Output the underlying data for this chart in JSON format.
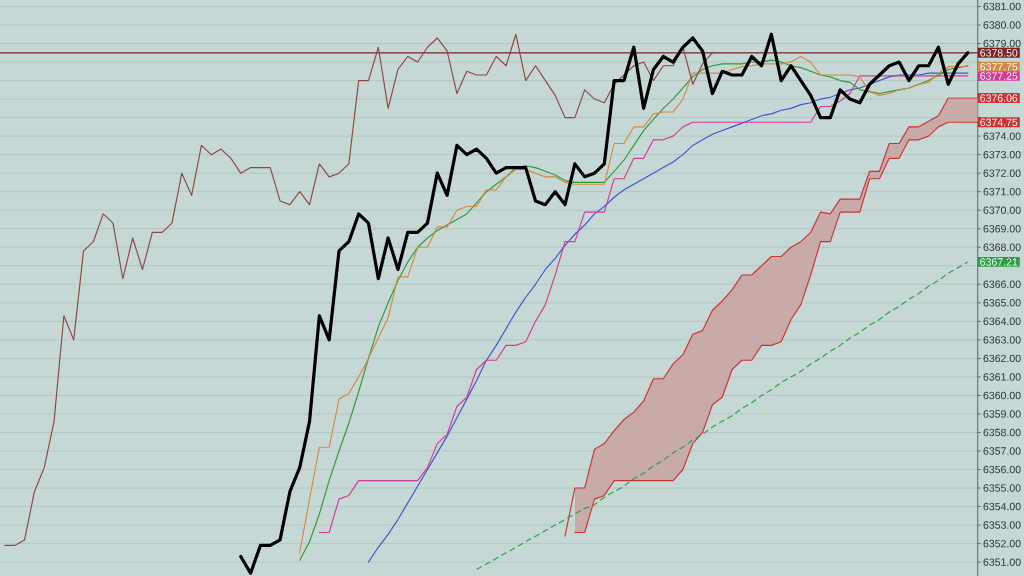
{
  "chart_data": {
    "type": "line",
    "categories": [
      null,
      null,
      null,
      null,
      null,
      null,
      null,
      null,
      null,
      null,
      null,
      null,
      null,
      null,
      null,
      null,
      null,
      null,
      null,
      null,
      null,
      null,
      null,
      null,
      null,
      null,
      null,
      null,
      null,
      null,
      null,
      null,
      null,
      null,
      null,
      null,
      null,
      null,
      null,
      null,
      null,
      null,
      null,
      null,
      null,
      null,
      null,
      null,
      null,
      null,
      null,
      null,
      null,
      null,
      null,
      null,
      null,
      null,
      null,
      null,
      null,
      null,
      null,
      null,
      null,
      null,
      null,
      null,
      null,
      null,
      null,
      null,
      null,
      null,
      null,
      null,
      null,
      null,
      null,
      null,
      null,
      null,
      null,
      null,
      null,
      null,
      null,
      null,
      null,
      null,
      null,
      null,
      null,
      null,
      null,
      null,
      null,
      null,
      null,
      null
    ],
    "ylim": [
      6350.25,
      6381.35
    ],
    "yticks": [
      {
        "value": 6351,
        "label": "6351.00"
      },
      {
        "value": 6352,
        "label": "6352.00"
      },
      {
        "value": 6353,
        "label": "6353.00"
      },
      {
        "value": 6354,
        "label": "6354.00"
      },
      {
        "value": 6355,
        "label": "6355.00"
      },
      {
        "value": 6356,
        "label": "6356.00"
      },
      {
        "value": 6357,
        "label": "6357.00"
      },
      {
        "value": 6358,
        "label": "6358.00"
      },
      {
        "value": 6359,
        "label": "6359.00"
      },
      {
        "value": 6360,
        "label": "6360.00"
      },
      {
        "value": 6361,
        "label": "6361.00"
      },
      {
        "value": 6362,
        "label": "6362.00"
      },
      {
        "value": 6363,
        "label": "6363.00"
      },
      {
        "value": 6364,
        "label": "6364.00"
      },
      {
        "value": 6365,
        "label": "6365.00"
      },
      {
        "value": 6366,
        "label": "6366.00"
      },
      {
        "value": 6367,
        "label": null
      },
      {
        "value": 6368,
        "label": "6368.00"
      },
      {
        "value": 6369,
        "label": "6369.00"
      },
      {
        "value": 6370,
        "label": "6370.00"
      },
      {
        "value": 6371,
        "label": "6371.00"
      },
      {
        "value": 6372,
        "label": "6372.00"
      },
      {
        "value": 6373,
        "label": "6373.00"
      },
      {
        "value": 6374,
        "label": "6374.00"
      },
      {
        "value": 6375,
        "label": null
      },
      {
        "value": 6376,
        "label": null
      },
      {
        "value": 6377,
        "label": null
      },
      {
        "value": 6378,
        "label": null
      },
      {
        "value": 6379,
        "label": "6379.00"
      },
      {
        "value": 6380,
        "label": "6380.00"
      },
      {
        "value": 6381,
        "label": "6381.00"
      }
    ],
    "tick_labels": "y",
    "grid": "y",
    "ref_lines": [
      {
        "axis": "y",
        "value": 6378.5,
        "label": "6378.50",
        "color": "#7e2222"
      }
    ],
    "series": [
      {
        "color": "#cc3333",
        "values": [
          null,
          null,
          null,
          null,
          null,
          null,
          null,
          null,
          null,
          null,
          null,
          null,
          null,
          null,
          null,
          null,
          null,
          null,
          null,
          null,
          null,
          null,
          null,
          null,
          null,
          null,
          null,
          null,
          null,
          null,
          null,
          null,
          null,
          null,
          null,
          null,
          null,
          null,
          null,
          null,
          null,
          null,
          null,
          null,
          null,
          null,
          null,
          null,
          null,
          null,
          null,
          null,
          null,
          null,
          null,
          null,
          null,
          6352.4,
          6355.0,
          6355.0,
          6357.1,
          6357.4,
          6358.1,
          6358.7,
          6359.1,
          6359.7,
          6360.9,
          6360.9,
          6361.7,
          6362.2,
          6363.3,
          6363.5,
          6364.6,
          6365.1,
          6365.7,
          6366.5,
          6366.5,
          6367.0,
          6367.5,
          6367.5,
          6368.0,
          6368.3,
          6368.8,
          6369.9,
          6369.8,
          6370.6,
          6370.6,
          6370.6,
          6372.1,
          6372.1,
          6373.6,
          6373.6,
          6374.5,
          6374.5,
          6374.8,
          6375.1,
          6376.06,
          6376.06,
          6376.06,
          6376.06
        ],
        "upper": [
          null,
          null,
          null,
          null,
          null,
          null,
          null,
          null,
          null,
          null,
          null,
          null,
          null,
          null,
          null,
          null,
          null,
          null,
          null,
          null,
          null,
          null,
          null,
          null,
          null,
          null,
          null,
          null,
          null,
          null,
          null,
          null,
          null,
          null,
          null,
          null,
          null,
          null,
          null,
          null,
          null,
          null,
          null,
          null,
          null,
          null,
          null,
          null,
          null,
          null,
          null,
          null,
          null,
          null,
          null,
          null,
          null,
          null,
          6355.0,
          6355.0,
          6357.1,
          6357.4,
          6358.1,
          6358.7,
          6359.1,
          6359.7,
          6360.9,
          6360.9,
          6361.7,
          6362.2,
          6363.3,
          6363.5,
          6364.6,
          6365.1,
          6365.7,
          6366.5,
          6366.5,
          6367.0,
          6367.5,
          6367.5,
          6368.0,
          6368.3,
          6368.8,
          6369.9,
          6369.8,
          6370.6,
          6370.6,
          6370.6,
          6372.1,
          6372.1,
          6373.6,
          6373.6,
          6374.5,
          6374.5,
          6374.8,
          6375.1,
          6376.06,
          6376.06,
          6376.06,
          6376.06
        ],
        "lower": [
          null,
          null,
          null,
          null,
          null,
          null,
          null,
          null,
          null,
          null,
          null,
          null,
          null,
          null,
          null,
          null,
          null,
          null,
          null,
          null,
          null,
          null,
          null,
          null,
          null,
          null,
          null,
          null,
          null,
          null,
          null,
          null,
          null,
          null,
          null,
          null,
          null,
          null,
          null,
          null,
          null,
          null,
          null,
          null,
          null,
          null,
          null,
          null,
          null,
          null,
          null,
          null,
          null,
          null,
          null,
          null,
          null,
          null,
          6352.6,
          6352.6,
          6354.4,
          6354.6,
          6355.4,
          6355.4,
          6355.4,
          6355.4,
          6355.4,
          6355.4,
          6355.4,
          6356.0,
          6357.4,
          6358.0,
          6359.5,
          6359.9,
          6361.4,
          6361.9,
          6361.9,
          6362.7,
          6362.7,
          6362.9,
          6364.1,
          6364.9,
          6366.5,
          6368.3,
          6368.3,
          6369.9,
          6369.9,
          6369.9,
          6371.7,
          6371.7,
          6372.8,
          6372.8,
          6373.8,
          6373.8,
          6374.0,
          6374.5,
          6374.75,
          6374.75,
          6374.75,
          6374.75
        ],
        "value_labels": [
          null,
          null,
          null,
          null,
          null,
          null,
          null,
          null,
          null,
          null,
          null,
          null,
          null,
          null,
          null,
          null,
          null,
          null,
          null,
          null,
          null,
          null,
          null,
          null,
          null,
          null,
          null,
          null,
          null,
          null,
          null,
          null,
          null,
          null,
          null,
          null,
          null,
          null,
          null,
          null,
          null,
          null,
          null,
          null,
          null,
          null,
          null,
          null,
          null,
          null,
          null,
          null,
          null,
          null,
          null,
          null,
          null,
          null,
          null,
          null,
          null,
          null,
          null,
          null,
          null,
          null,
          null,
          null,
          null,
          null,
          null,
          null,
          null,
          null,
          null,
          null,
          null,
          null,
          null,
          null,
          null,
          null,
          null,
          null,
          null,
          null,
          null,
          null,
          null,
          null,
          null,
          null,
          null,
          null,
          null,
          null,
          null,
          null,
          null,
          "6376.06"
        ]
      },
      {
        "color": "#cc3333",
        "values": [
          null,
          null,
          null,
          null,
          null,
          null,
          null,
          null,
          null,
          null,
          null,
          null,
          null,
          null,
          null,
          null,
          null,
          null,
          null,
          null,
          null,
          null,
          null,
          null,
          null,
          null,
          null,
          null,
          null,
          null,
          null,
          null,
          null,
          null,
          null,
          null,
          null,
          null,
          null,
          null,
          null,
          null,
          null,
          null,
          null,
          null,
          null,
          null,
          null,
          null,
          null,
          null,
          null,
          null,
          null,
          null,
          null,
          null,
          6352.6,
          6352.6,
          6354.4,
          6354.6,
          6355.4,
          6355.4,
          6355.4,
          6355.4,
          6355.4,
          6355.4,
          6355.4,
          6356.0,
          6357.4,
          6358.0,
          6359.5,
          6359.9,
          6361.4,
          6361.9,
          6361.9,
          6362.7,
          6362.7,
          6362.9,
          6364.1,
          6364.9,
          6366.5,
          6368.3,
          6368.3,
          6369.9,
          6369.9,
          6369.9,
          6371.7,
          6371.7,
          6372.8,
          6372.8,
          6373.8,
          6373.8,
          6374.0,
          6374.5,
          6374.75,
          6374.75,
          6374.75,
          6374.75
        ],
        "value_labels": [
          null,
          null,
          null,
          null,
          null,
          null,
          null,
          null,
          null,
          null,
          null,
          null,
          null,
          null,
          null,
          null,
          null,
          null,
          null,
          null,
          null,
          null,
          null,
          null,
          null,
          null,
          null,
          null,
          null,
          null,
          null,
          null,
          null,
          null,
          null,
          null,
          null,
          null,
          null,
          null,
          null,
          null,
          null,
          null,
          null,
          null,
          null,
          null,
          null,
          null,
          null,
          null,
          null,
          null,
          null,
          null,
          null,
          null,
          null,
          null,
          null,
          null,
          null,
          null,
          null,
          null,
          null,
          null,
          null,
          null,
          null,
          null,
          null,
          null,
          null,
          null,
          null,
          null,
          null,
          null,
          null,
          null,
          null,
          null,
          null,
          null,
          null,
          null,
          null,
          null,
          null,
          null,
          null,
          null,
          null,
          null,
          null,
          null,
          null,
          "6374.75"
        ]
      },
      {
        "color": "#2ea043",
        "line_style": "dashed",
        "values": [
          null,
          null,
          null,
          null,
          null,
          null,
          null,
          null,
          null,
          null,
          null,
          null,
          null,
          null,
          null,
          null,
          null,
          null,
          null,
          null,
          null,
          null,
          null,
          null,
          null,
          null,
          null,
          null,
          null,
          null,
          null,
          null,
          null,
          null,
          null,
          null,
          null,
          null,
          null,
          null,
          null,
          null,
          null,
          null,
          null,
          null,
          null,
          null,
          6350.6,
          6350.9,
          6351.2,
          6351.5,
          6351.8,
          6352.1,
          6352.4,
          6352.7,
          6353.0,
          6353.3,
          6353.6,
          6353.9,
          6354.1,
          6354.5,
          6354.8,
          6355.1,
          6355.5,
          6355.8,
          6356.2,
          6356.5,
          6356.9,
          6357.2,
          6357.6,
          6357.9,
          6358.3,
          6358.6,
          6358.9,
          6359.3,
          6359.6,
          6360.0,
          6360.3,
          6360.7,
          6361.0,
          6361.3,
          6361.7,
          6362.0,
          6362.4,
          6362.7,
          6363.1,
          6363.4,
          6363.8,
          6364.1,
          6364.5,
          6364.8,
          6365.2,
          6365.5,
          6365.9,
          6366.2,
          6366.6,
          6366.9,
          6367.21,
          null
        ],
        "value_labels": [
          null,
          null,
          null,
          null,
          null,
          null,
          null,
          null,
          null,
          null,
          null,
          null,
          null,
          null,
          null,
          null,
          null,
          null,
          null,
          null,
          null,
          null,
          null,
          null,
          null,
          null,
          null,
          null,
          null,
          null,
          null,
          null,
          null,
          null,
          null,
          null,
          null,
          null,
          null,
          null,
          null,
          null,
          null,
          null,
          null,
          null,
          null,
          null,
          null,
          null,
          null,
          null,
          null,
          null,
          null,
          null,
          null,
          null,
          null,
          null,
          null,
          null,
          null,
          null,
          null,
          null,
          null,
          null,
          null,
          null,
          null,
          null,
          null,
          null,
          null,
          null,
          null,
          null,
          null,
          null,
          null,
          null,
          null,
          null,
          null,
          null,
          null,
          null,
          null,
          null,
          null,
          null,
          null,
          null,
          null,
          null,
          null,
          null,
          "6367.21",
          null
        ]
      },
      {
        "color": "#3b55d0",
        "values": [
          null,
          null,
          null,
          null,
          null,
          null,
          null,
          null,
          null,
          null,
          null,
          null,
          null,
          null,
          null,
          null,
          null,
          null,
          null,
          null,
          null,
          null,
          null,
          null,
          null,
          null,
          null,
          null,
          null,
          null,
          null,
          null,
          null,
          null,
          null,
          null,
          null,
          6351.0,
          6351.8,
          6352.5,
          6353.3,
          6354.2,
          6355.1,
          6356.0,
          6356.9,
          6357.8,
          6358.8,
          6359.8,
          6360.8,
          6361.9,
          6362.7,
          6363.6,
          6364.5,
          6365.3,
          6366.0,
          6366.8,
          6367.4,
          6368.1,
          6368.7,
          6369.2,
          6369.8,
          6370.2,
          6370.7,
          6371.1,
          6371.4,
          6371.7,
          6372.0,
          6372.3,
          6372.6,
          6373.0,
          6373.5,
          6373.8,
          6374.1,
          6374.3,
          6374.5,
          6374.7,
          6374.9,
          6375.1,
          6375.2,
          6375.4,
          6375.5,
          6375.7,
          6375.8,
          6376.0,
          6376.1,
          6376.3,
          6376.5,
          6376.6,
          6376.8,
          6377.0,
          6377.2,
          6377.3,
          6377.3,
          6377.3,
          6377.4,
          6377.4,
          6377.4,
          6377.4,
          6377.4,
          null
        ]
      },
      {
        "color": "#d23c95",
        "values": [
          null,
          null,
          null,
          null,
          null,
          null,
          null,
          null,
          null,
          null,
          null,
          null,
          null,
          null,
          null,
          null,
          null,
          null,
          null,
          null,
          null,
          null,
          null,
          null,
          null,
          null,
          null,
          null,
          null,
          null,
          null,
          null,
          6352.6,
          6352.6,
          6354.4,
          6354.6,
          6355.4,
          6355.4,
          6355.4,
          6355.4,
          6355.4,
          6355.4,
          6355.4,
          6356.1,
          6357.4,
          6357.9,
          6359.4,
          6359.9,
          6361.4,
          6361.9,
          6361.9,
          6362.7,
          6362.7,
          6362.9,
          6364.0,
          6364.9,
          6366.5,
          6368.3,
          6368.3,
          6369.9,
          6369.9,
          6369.9,
          6371.7,
          6371.7,
          6372.8,
          6372.8,
          6373.8,
          6373.8,
          6374.0,
          6374.5,
          6374.75,
          6374.75,
          6374.75,
          6374.75,
          6374.75,
          6374.75,
          6374.75,
          6374.75,
          6374.75,
          6374.75,
          6374.75,
          6374.75,
          6374.75,
          6375.6,
          6375.6,
          6375.9,
          6376.3,
          6377.25,
          6377.25,
          6377.25,
          6377.25,
          6377.25,
          6377.25,
          6377.25,
          6377.25,
          6377.25,
          6377.25,
          6377.25,
          6377.25,
          null
        ],
        "value_labels": [
          null,
          null,
          null,
          null,
          null,
          null,
          null,
          null,
          null,
          null,
          null,
          null,
          null,
          null,
          null,
          null,
          null,
          null,
          null,
          null,
          null,
          null,
          null,
          null,
          null,
          null,
          null,
          null,
          null,
          null,
          null,
          null,
          null,
          null,
          null,
          null,
          null,
          null,
          null,
          null,
          null,
          null,
          null,
          null,
          null,
          null,
          null,
          null,
          null,
          null,
          null,
          null,
          null,
          null,
          null,
          null,
          null,
          null,
          null,
          null,
          null,
          null,
          null,
          null,
          null,
          null,
          null,
          null,
          null,
          null,
          null,
          null,
          null,
          null,
          null,
          null,
          null,
          null,
          null,
          null,
          null,
          null,
          null,
          null,
          null,
          null,
          null,
          null,
          null,
          null,
          null,
          null,
          null,
          null,
          null,
          null,
          null,
          null,
          "6377.25",
          null
        ]
      },
      {
        "color": "#2f9a35",
        "values": [
          null,
          null,
          null,
          null,
          null,
          null,
          null,
          null,
          null,
          null,
          null,
          null,
          null,
          null,
          null,
          null,
          null,
          null,
          null,
          null,
          null,
          null,
          null,
          null,
          null,
          null,
          null,
          null,
          null,
          null,
          6351.1,
          6352.1,
          6353.6,
          6355.4,
          6357.0,
          6358.5,
          6360.2,
          6362.0,
          6363.7,
          6365.0,
          6366.2,
          6367.2,
          6368.0,
          6368.5,
          6368.9,
          6369.2,
          6369.5,
          6369.8,
          6370.4,
          6371.0,
          6371.4,
          6371.8,
          6372.3,
          6372.4,
          6372.3,
          6372.1,
          6371.9,
          6371.6,
          6371.5,
          6371.5,
          6371.5,
          6371.5,
          6372.1,
          6372.7,
          6373.5,
          6374.3,
          6374.9,
          6375.5,
          6376.0,
          6376.6,
          6377.2,
          6377.6,
          6377.8,
          6377.9,
          6377.9,
          6377.9,
          6378.0,
          6378.0,
          6378.1,
          6378.0,
          6377.8,
          6377.7,
          6377.5,
          6377.3,
          6377.2,
          6377.0,
          6376.9,
          6376.5,
          6376.4,
          6376.3,
          6376.4,
          6376.5,
          6376.6,
          6376.8,
          6377.0,
          6377.3,
          6377.6,
          6377.7,
          6377.8,
          null
        ]
      },
      {
        "color": "#d38a46",
        "values": [
          null,
          null,
          null,
          null,
          null,
          null,
          null,
          null,
          null,
          null,
          null,
          null,
          null,
          null,
          null,
          null,
          null,
          null,
          null,
          null,
          null,
          null,
          null,
          null,
          null,
          null,
          null,
          null,
          null,
          null,
          6351.5,
          6354.4,
          6357.2,
          6357.2,
          6359.8,
          6360.1,
          6361.0,
          6362.0,
          6363.1,
          6364.2,
          6366.4,
          6366.4,
          6368.0,
          6368.0,
          6369.1,
          6369.1,
          6370.0,
          6370.2,
          6370.2,
          6371.1,
          6371.1,
          6371.8,
          6372.2,
          6372.2,
          6372.0,
          6371.8,
          6371.8,
          6371.5,
          6371.4,
          6371.4,
          6371.4,
          6371.4,
          6373.6,
          6373.6,
          6374.5,
          6374.5,
          6375.2,
          6375.3,
          6375.3,
          6376.0,
          6377.4,
          6377.4,
          6377.4,
          6377.4,
          6377.6,
          6377.75,
          6377.8,
          6377.9,
          6377.9,
          6377.9,
          6378.0,
          6378.3,
          6378.0,
          6377.3,
          6377.3,
          6377.3,
          6377.3,
          6377.2,
          6376.4,
          6376.2,
          6376.3,
          6376.5,
          6376.6,
          6376.8,
          6376.9,
          6377.4,
          6377.75,
          6377.75,
          6377.75,
          null
        ],
        "value_labels": [
          null,
          null,
          null,
          null,
          null,
          null,
          null,
          null,
          null,
          null,
          null,
          null,
          null,
          null,
          null,
          null,
          null,
          null,
          null,
          null,
          null,
          null,
          null,
          null,
          null,
          null,
          null,
          null,
          null,
          null,
          null,
          null,
          null,
          null,
          null,
          null,
          null,
          null,
          null,
          null,
          null,
          null,
          null,
          null,
          null,
          null,
          null,
          null,
          null,
          null,
          null,
          null,
          null,
          null,
          null,
          null,
          null,
          null,
          null,
          null,
          null,
          null,
          null,
          null,
          null,
          null,
          null,
          null,
          null,
          null,
          null,
          null,
          null,
          null,
          null,
          null,
          null,
          null,
          null,
          null,
          null,
          null,
          null,
          null,
          null,
          null,
          null,
          null,
          null,
          null,
          null,
          null,
          null,
          null,
          null,
          null,
          null,
          null,
          "6377.75",
          null
        ]
      },
      {
        "color": "#8c4646",
        "values": [
          6351.9,
          6351.9,
          6352.2,
          6354.8,
          6356.1,
          6358.6,
          6364.3,
          6363.0,
          6367.8,
          6368.3,
          6369.8,
          6369.3,
          6366.3,
          6368.5,
          6366.8,
          6368.8,
          6368.8,
          6369.3,
          6372.0,
          6370.8,
          6373.5,
          6373.0,
          6373.3,
          6372.8,
          6372.0,
          6372.3,
          6372.3,
          6372.3,
          6370.5,
          6370.3,
          6371.0,
          6370.3,
          6372.5,
          6371.8,
          6372.0,
          6372.5,
          6377.0,
          6377.0,
          6378.8,
          6375.5,
          6377.6,
          6378.3,
          6378.0,
          6378.8,
          6379.3,
          6378.6,
          6376.3,
          6377.5,
          6377.3,
          6377.3,
          6378.3,
          6377.8,
          6379.5,
          6377.0,
          6377.8,
          6377.0,
          6376.2,
          6375.0,
          6375.0,
          6376.5,
          6376.0,
          6375.8,
          6376.8,
          6377.3,
          6377.8,
          6378.0,
          6377.0,
          6377.8,
          6377.8,
          6378.8,
          6376.8,
          6377.9,
          6378.5,
          null,
          null,
          null,
          null,
          null,
          null,
          null,
          null,
          null,
          null,
          null,
          null,
          null,
          null,
          null,
          null,
          null,
          null,
          null,
          null,
          null,
          null,
          null,
          null,
          null,
          null,
          null
        ]
      },
      {
        "color": "#000000",
        "values": [
          null,
          null,
          null,
          null,
          null,
          null,
          null,
          null,
          null,
          null,
          null,
          null,
          null,
          null,
          null,
          null,
          null,
          null,
          null,
          null,
          null,
          null,
          null,
          null,
          6351.3,
          6350.4,
          6351.9,
          6351.9,
          6352.2,
          6354.8,
          6356.1,
          6358.6,
          6364.3,
          6363.0,
          6367.8,
          6368.3,
          6369.8,
          6369.3,
          6366.3,
          6368.5,
          6366.8,
          6368.8,
          6368.8,
          6369.3,
          6372.0,
          6370.8,
          6373.5,
          6373.0,
          6373.3,
          6372.8,
          6372.0,
          6372.3,
          6372.3,
          6372.3,
          6370.5,
          6370.3,
          6371.0,
          6370.3,
          6372.5,
          6371.8,
          6372.0,
          6372.5,
          6377.0,
          6377.0,
          6378.8,
          6375.5,
          6377.6,
          6378.3,
          6378.0,
          6378.8,
          6379.3,
          6378.6,
          6376.3,
          6377.5,
          6377.3,
          6377.3,
          6378.3,
          6377.8,
          6379.5,
          6377.0,
          6377.8,
          6377.0,
          6376.2,
          6375.0,
          6375.0,
          6376.5,
          6376.0,
          6375.8,
          6376.8,
          6377.3,
          6377.8,
          6378.0,
          6377.0,
          6377.8,
          6377.8,
          6378.8,
          6376.8,
          6377.9,
          6378.5,
          null
        ]
      }
    ]
  }
}
